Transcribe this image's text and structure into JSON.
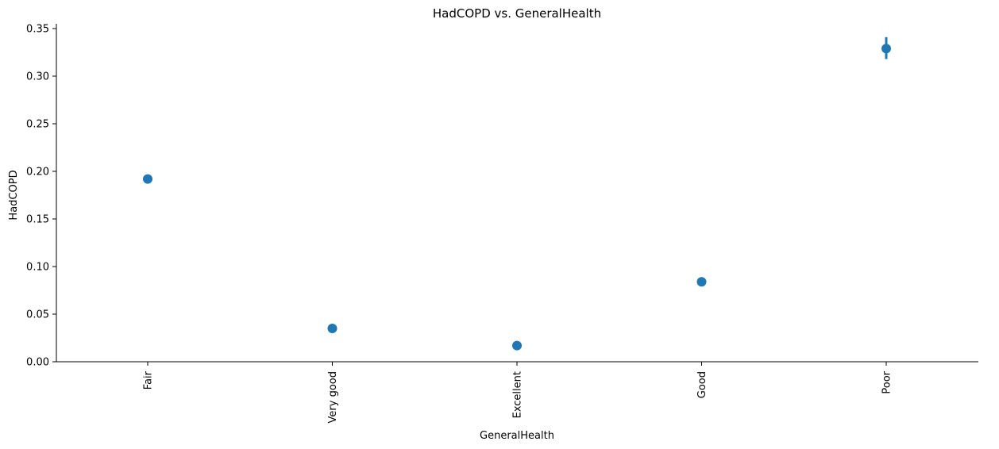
{
  "chart_data": {
    "type": "scatter",
    "title": "HadCOPD vs. GeneralHealth",
    "xlabel": "GeneralHealth",
    "ylabel": "HadCOPD",
    "categories": [
      "Fair",
      "Very good",
      "Excellent",
      "Good",
      "Poor"
    ],
    "series": [
      {
        "values": [
          0.192,
          0.035,
          0.017,
          0.084,
          0.329
        ],
        "error_low": [
          0.188,
          0.034,
          0.016,
          0.083,
          0.318
        ],
        "error_high": [
          0.196,
          0.036,
          0.018,
          0.085,
          0.341
        ]
      }
    ],
    "ylim": [
      0,
      0.355
    ],
    "yticks": [
      "0.00",
      "0.05",
      "0.10",
      "0.15",
      "0.20",
      "0.25",
      "0.30",
      "0.35"
    ],
    "grid": false,
    "colors": {
      "point": "#1f77b4",
      "axis": "#000000"
    }
  }
}
